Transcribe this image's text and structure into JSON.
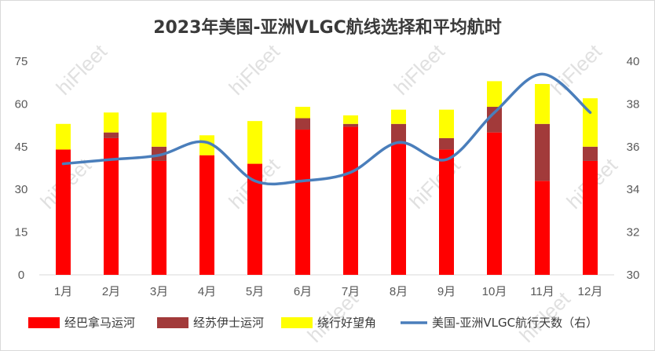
{
  "chart_data": {
    "type": "bar",
    "stacked": true,
    "title": "2023年美国-亚洲VLGC航线选择和平均航时",
    "categories": [
      "1月",
      "2月",
      "3月",
      "4月",
      "5月",
      "6月",
      "7月",
      "8月",
      "9月",
      "10月",
      "11月",
      "12月"
    ],
    "series": [
      {
        "name": "经巴拿马运河",
        "color": "#ff0000",
        "axis": "left",
        "values": [
          44,
          48,
          40,
          42,
          39,
          51,
          52,
          46,
          44,
          50,
          33,
          40
        ]
      },
      {
        "name": "经苏伊士运河",
        "color": "#a23a3a",
        "axis": "left",
        "values": [
          0,
          2,
          5,
          0,
          0,
          4,
          1,
          7,
          4,
          9,
          20,
          5
        ]
      },
      {
        "name": "绕行好望角",
        "color": "#ffff00",
        "axis": "left",
        "values": [
          9,
          7,
          12,
          7,
          15,
          4,
          3,
          5,
          10,
          9,
          14,
          17
        ]
      },
      {
        "name": "美国-亚洲VLGC航行天数（右）",
        "type": "line",
        "color": "#4a7ebb",
        "axis": "right",
        "values": [
          35.2,
          35.4,
          35.6,
          36.2,
          34.4,
          34.4,
          34.8,
          36.2,
          35.4,
          37.6,
          39.4,
          37.6
        ]
      }
    ],
    "y_left": {
      "ticks": [
        "0",
        "15",
        "30",
        "45",
        "60",
        "75"
      ],
      "range": [
        0,
        75
      ]
    },
    "y_right": {
      "ticks": [
        "30",
        "32",
        "34",
        "36",
        "38",
        "40"
      ],
      "range": [
        30,
        40
      ]
    },
    "grid": false,
    "legend_position": "bottom"
  },
  "watermark": "hiFleet"
}
